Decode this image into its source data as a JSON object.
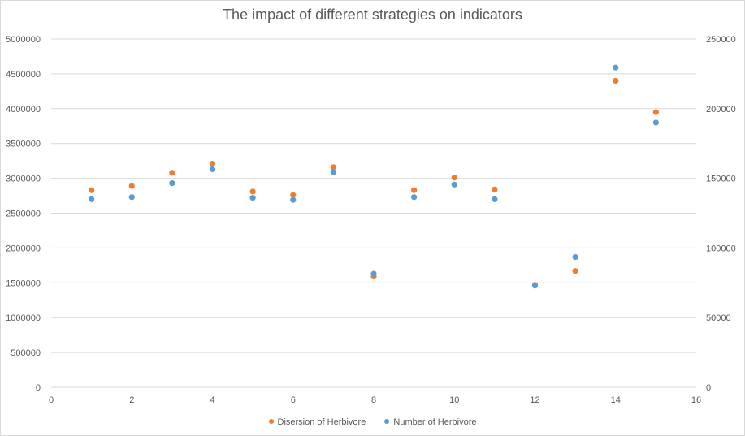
{
  "chart_data": {
    "type": "scatter",
    "title": "The impact of different strategies on indicators",
    "xlabel": "",
    "ylabel": "",
    "xlim": [
      0,
      16
    ],
    "xticks": [
      0,
      2,
      4,
      6,
      8,
      10,
      12,
      14,
      16
    ],
    "ylim_left": [
      0,
      5000000
    ],
    "yticks_left": [
      0,
      500000,
      1000000,
      1500000,
      2000000,
      2500000,
      3000000,
      3500000,
      4000000,
      4500000,
      5000000
    ],
    "ylim_right": [
      0,
      250000
    ],
    "yticks_right": [
      0,
      50000,
      100000,
      150000,
      200000,
      250000
    ],
    "grid": true,
    "legend_position": "bottom",
    "x": [
      1,
      2,
      3,
      4,
      5,
      6,
      7,
      8,
      9,
      10,
      11,
      12,
      13,
      14,
      15
    ],
    "series": [
      {
        "name": "Disersion of Herbivore",
        "color": "#ed7d31",
        "axis": "left",
        "values": [
          2830000,
          2890000,
          3080000,
          3210000,
          2810000,
          2760000,
          3160000,
          1590000,
          2830000,
          3010000,
          2840000,
          1470000,
          1670000,
          4400000,
          3950000
        ]
      },
      {
        "name": "Number of Herbivore",
        "color": "#5b9bd5",
        "axis": "right",
        "values": [
          135000,
          136500,
          146500,
          156500,
          136000,
          134500,
          154500,
          81500,
          136500,
          145500,
          135000,
          73000,
          93500,
          229500,
          190000
        ]
      }
    ]
  }
}
